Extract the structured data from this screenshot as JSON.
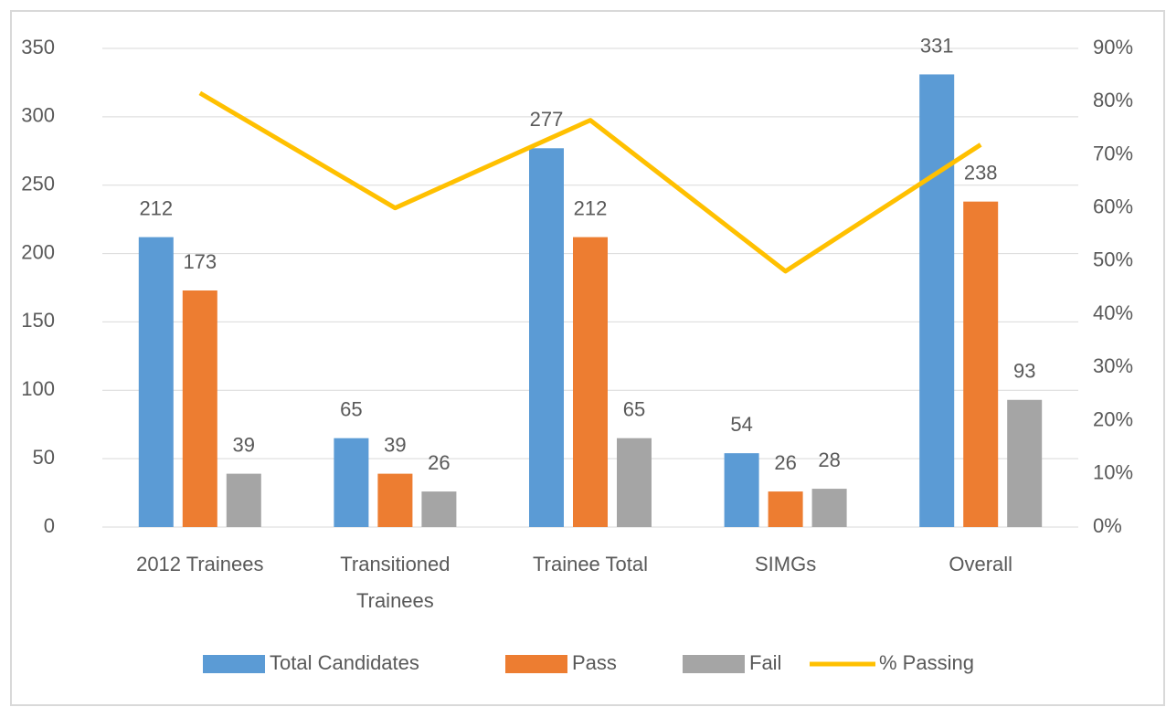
{
  "chart_data": {
    "type": "bar",
    "categories": [
      "2012 Trainees",
      "Transitioned Trainees",
      "Trainee Total",
      "SIMGs",
      "Overall"
    ],
    "series": [
      {
        "name": "Total Candidates",
        "color": "#5b9bd5",
        "values": [
          212,
          65,
          277,
          54,
          331
        ]
      },
      {
        "name": "Pass",
        "color": "#ed7d31",
        "values": [
          173,
          39,
          212,
          26,
          238
        ]
      },
      {
        "name": "Fail",
        "color": "#a5a5a5",
        "values": [
          39,
          26,
          65,
          28,
          93
        ]
      },
      {
        "name": "% Passing",
        "color": "#ffc000",
        "type": "line",
        "axis": "y2",
        "values": [
          81.6,
          60,
          76.5,
          48.1,
          71.9
        ]
      }
    ],
    "ylim": [
      0,
      350
    ],
    "yticks": [
      0,
      50,
      100,
      150,
      200,
      250,
      300,
      350
    ],
    "y2lim": [
      0,
      90
    ],
    "y2ticks": [
      {
        "value": 0,
        "label": "0%"
      },
      {
        "value": 10,
        "label": "10%"
      },
      {
        "value": 20,
        "label": "20%"
      },
      {
        "value": 30,
        "label": "30%"
      },
      {
        "value": 40,
        "label": "40%"
      },
      {
        "value": 50,
        "label": "50%"
      },
      {
        "value": 60,
        "label": "60%"
      },
      {
        "value": 70,
        "label": "70%"
      },
      {
        "value": 80,
        "label": "80%"
      },
      {
        "value": 90,
        "label": "90%"
      }
    ],
    "grid": true,
    "legend": "bottom",
    "data_labels": true
  }
}
